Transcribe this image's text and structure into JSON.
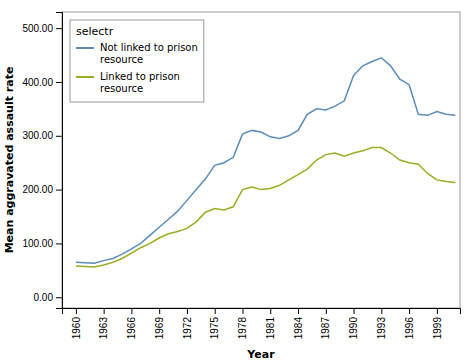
{
  "chart_data": {
    "type": "line",
    "x_label": "Year",
    "y_label": "Mean aggravated assault rate",
    "legend_title": "selectr",
    "legend": "upper left",
    "grid": false,
    "xlim": [
      1958.5,
      2001.5
    ],
    "ylim": [
      -20,
      530
    ],
    "xticks": [
      1960,
      1963,
      1966,
      1969,
      1972,
      1975,
      1978,
      1981,
      1984,
      1987,
      1990,
      1993,
      1996,
      1999
    ],
    "yticks": [
      {
        "value": 0,
        "label": "0.00"
      },
      {
        "value": 100,
        "label": "100.00"
      },
      {
        "value": 200,
        "label": "200.00"
      },
      {
        "value": 300,
        "label": "300.00"
      },
      {
        "value": 400,
        "label": "400.00"
      },
      {
        "value": 500,
        "label": "500.00"
      }
    ],
    "x": [
      1960,
      1961,
      1962,
      1963,
      1964,
      1965,
      1966,
      1967,
      1968,
      1969,
      1970,
      1971,
      1972,
      1973,
      1974,
      1975,
      1976,
      1977,
      1978,
      1979,
      1980,
      1981,
      1982,
      1983,
      1984,
      1985,
      1986,
      1987,
      1988,
      1989,
      1990,
      1991,
      1992,
      1993,
      1994,
      1995,
      1996,
      1997,
      1998,
      1999,
      2000,
      2001
    ],
    "series": [
      {
        "name": "Not linked to prison\nresource",
        "color": "#5B8DB8",
        "values": [
          65,
          64,
          63,
          68,
          72,
          80,
          90,
          100,
          115,
          130,
          145,
          160,
          180,
          200,
          220,
          245,
          250,
          260,
          303,
          310,
          307,
          298,
          295,
          300,
          310,
          340,
          350,
          348,
          355,
          365,
          412,
          430,
          438,
          445,
          430,
          405,
          395,
          340,
          338,
          345,
          340,
          338
        ]
      },
      {
        "name": "Linked to prison\nresource",
        "color": "#9AAD23",
        "values": [
          58,
          57,
          56,
          60,
          65,
          72,
          82,
          92,
          100,
          110,
          118,
          122,
          128,
          140,
          158,
          165,
          162,
          168,
          200,
          205,
          200,
          202,
          208,
          218,
          228,
          238,
          255,
          265,
          268,
          262,
          268,
          272,
          278,
          278,
          268,
          255,
          250,
          247,
          230,
          218,
          215,
          213
        ]
      }
    ]
  }
}
